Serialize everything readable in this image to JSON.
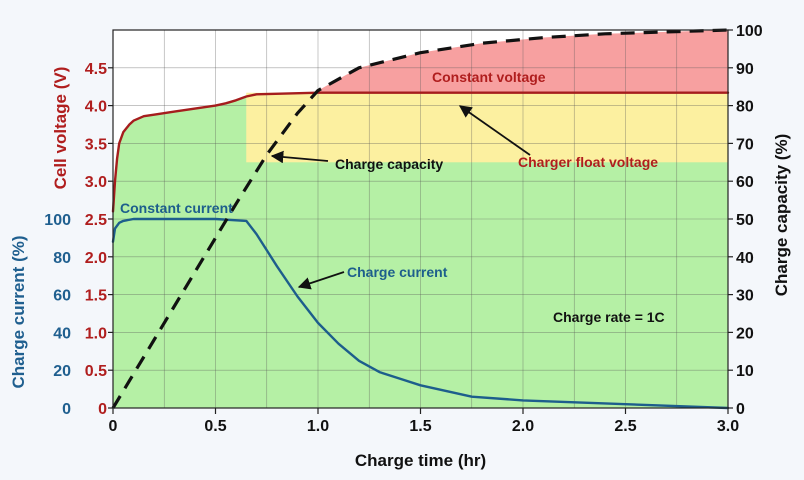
{
  "chart_data": {
    "type": "line",
    "xlabel": "Charge time (hr)",
    "xlim": [
      0,
      3.0
    ],
    "x_ticks": [
      "0",
      "0.5",
      "1.0",
      "1.5",
      "2.0",
      "2.5",
      "3.0"
    ],
    "x_tick_values": [
      0,
      0.5,
      1.0,
      1.5,
      2.0,
      2.5,
      3.0
    ],
    "axes": {
      "voltage": {
        "label": "Cell voltage (V)",
        "side": "left-inner",
        "range": [
          0,
          5.0
        ],
        "ticks": [
          "0",
          "0.5",
          "1.0",
          "1.5",
          "2.0",
          "2.5",
          "3.0",
          "3.5",
          "4.0",
          "4.5"
        ],
        "tick_values": [
          0,
          0.5,
          1.0,
          1.5,
          2.0,
          2.5,
          3.0,
          3.5,
          4.0,
          4.5
        ],
        "color": "#b01e1e"
      },
      "current": {
        "label": "Charge current (%)",
        "side": "left-outer",
        "range": [
          0,
          200
        ],
        "ticks": [
          "0",
          "20",
          "40",
          "60",
          "80",
          "100"
        ],
        "tick_values": [
          0,
          20,
          40,
          60,
          80,
          100
        ],
        "color": "#1f5f8f"
      },
      "capacity": {
        "label": "Charge capacity (%)",
        "side": "right",
        "range": [
          0,
          100
        ],
        "ticks": [
          "0",
          "10",
          "20",
          "30",
          "40",
          "50",
          "60",
          "70",
          "80",
          "90",
          "100"
        ],
        "tick_values": [
          0,
          10,
          20,
          30,
          40,
          50,
          60,
          70,
          80,
          90,
          100
        ],
        "color": "#111111"
      }
    },
    "series": [
      {
        "key": "voltage",
        "axis": "voltage",
        "style": "solid",
        "color": "#a51d1d",
        "x": [
          0,
          0.01,
          0.02,
          0.03,
          0.05,
          0.08,
          0.1,
          0.15,
          0.2,
          0.3,
          0.4,
          0.5,
          0.55,
          0.6,
          0.65,
          0.7,
          1.0,
          1.5,
          2.0,
          2.5,
          3.0
        ],
        "y": [
          2.6,
          3.0,
          3.3,
          3.5,
          3.65,
          3.75,
          3.8,
          3.86,
          3.88,
          3.92,
          3.96,
          4.0,
          4.03,
          4.07,
          4.12,
          4.15,
          4.17,
          4.17,
          4.17,
          4.17,
          4.17
        ]
      },
      {
        "key": "current",
        "axis": "current",
        "style": "solid",
        "color": "#1d5e8c",
        "x": [
          0,
          0.01,
          0.03,
          0.05,
          0.1,
          0.3,
          0.5,
          0.65,
          0.7,
          0.8,
          0.9,
          1.0,
          1.1,
          1.2,
          1.3,
          1.5,
          1.75,
          2.0,
          2.5,
          3.0
        ],
        "y": [
          88,
          95,
          98,
          99,
          100,
          100,
          100,
          99,
          92,
          75,
          59,
          45,
          34,
          25,
          19,
          12,
          6,
          4,
          2,
          0
        ]
      },
      {
        "key": "capacity",
        "axis": "capacity",
        "style": "dashed",
        "color": "#111111",
        "x": [
          0,
          0.2,
          0.4,
          0.6,
          0.75,
          0.9,
          1.0,
          1.2,
          1.5,
          1.8,
          2.1,
          2.4,
          2.7,
          3.0
        ],
        "y": [
          0,
          18,
          36,
          54,
          67,
          78,
          84,
          90,
          94,
          96.5,
          98,
          99,
          99.5,
          100
        ]
      }
    ],
    "regions": [
      {
        "key": "green",
        "color": "#b5f0a5"
      },
      {
        "key": "yellow",
        "color": "#fcf0a0",
        "x_from": 0.65,
        "x_to": 3.0,
        "voltage_from": 3.25,
        "voltage_to": 4.17
      },
      {
        "key": "red",
        "color": "#f7a0a0",
        "voltage_from": 4.17
      }
    ],
    "annotations": [
      {
        "key": "constant_voltage",
        "text": "Constant voltage",
        "color": "#b01e1e"
      },
      {
        "key": "charge_capacity",
        "text": "Charge capacity",
        "color": "#111111"
      },
      {
        "key": "charger_float",
        "text": "Charger float voltage",
        "color": "#b01e1e"
      },
      {
        "key": "constant_current",
        "text": "Constant current",
        "color": "#1d5e8c"
      },
      {
        "key": "charge_current",
        "text": "Charge current",
        "color": "#1d5e8c"
      },
      {
        "key": "charge_rate",
        "text": "Charge rate = 1C",
        "color": "#111111"
      }
    ],
    "grid": true
  }
}
